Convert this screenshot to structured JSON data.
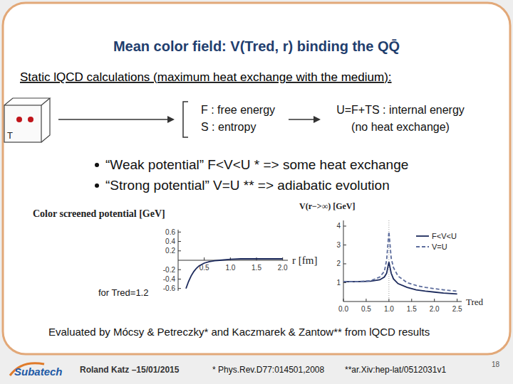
{
  "slide": {
    "title": "Mean color field: V(Tred, r) binding the QQ̄",
    "intro": "Static lQCD calculations (maximum heat exchange with the medium):",
    "box_label": "T",
    "definitions": [
      "F : free energy",
      "S : entropy"
    ],
    "internal_energy": [
      "U=F+TS : internal energy",
      "(no heat exchange)"
    ],
    "bullets": [
      "“Weak potential” F<V<U * => some heat exchange",
      "“Strong potential” V=U ** => adiabatic evolution"
    ],
    "footnote": "Evaluated by Mócsy & Petreczky* and Kaczmarek & Zantow** from lQCD results",
    "footer": {
      "logo": "Subatech",
      "author": "Roland Katz –15/01/2015",
      "ref1": "* Phys.Rev.D77:014501,2008",
      "ref2": "**ar.Xiv:hep-lat/0512031v1",
      "page": 18
    }
  },
  "chart_data": [
    {
      "type": "line",
      "title": "Color screened potential [GeV]",
      "x_label": "r [fm]",
      "annotation": "for Tred=1.2",
      "x": [
        0.15,
        0.2,
        0.25,
        0.3,
        0.35,
        0.4,
        0.5,
        0.6,
        0.7,
        0.8,
        1.0,
        1.2,
        1.5,
        2.0
      ],
      "values": [
        -0.6,
        -0.45,
        -0.33,
        -0.24,
        -0.17,
        -0.12,
        -0.06,
        -0.03,
        -0.01,
        0.0,
        0.02,
        0.03,
        0.03,
        0.03
      ],
      "color": "#1c2a5c",
      "xlim": [
        0,
        2.1
      ],
      "ylim": [
        -0.65,
        0.65
      ],
      "xticks": [
        0.5,
        {
          "value": 1,
          "label": "1.0"
        },
        1.5,
        {
          "value": 2,
          "label": "2.0"
        }
      ],
      "yticks": [
        0.6,
        0.4,
        0.2,
        -0.2,
        -0.4,
        -0.6
      ]
    },
    {
      "type": "line",
      "title": "V(r−>∞) [GeV]",
      "x_label": "Tred",
      "x": [
        0,
        0.2,
        0.4,
        0.6,
        0.8,
        0.9,
        0.95,
        1.0,
        1.05,
        1.1,
        1.2,
        1.4,
        1.6,
        1.8,
        2.0,
        2.2,
        2.5
      ],
      "series": [
        {
          "name": "F<V<U",
          "color": "#1c2a5c",
          "line_style": "solid",
          "values": [
            1.05,
            1.05,
            1.06,
            1.08,
            1.15,
            1.3,
            1.5,
            2.1,
            1.5,
            1.2,
            0.95,
            0.75,
            0.62,
            0.55,
            0.5,
            0.45,
            0.4
          ]
        },
        {
          "name": "V=U",
          "color": "#5c6c9c",
          "line_style": "dashed",
          "values": [
            1.05,
            1.05,
            1.07,
            1.1,
            1.3,
            1.6,
            2.2,
            3.7,
            2.3,
            1.8,
            1.35,
            1.0,
            0.85,
            0.75,
            0.68,
            0.62,
            0.55
          ]
        }
      ],
      "reference_x": 1,
      "xlim": [
        0,
        2.6
      ],
      "ylim": [
        0,
        4.3
      ],
      "xticks": [
        {
          "value": 0,
          "label": "0.0"
        },
        0.5,
        {
          "value": 1,
          "label": "1.0"
        },
        1.5,
        {
          "value": 2,
          "label": "2.0"
        },
        2.5
      ],
      "yticks": [
        1,
        2,
        3,
        4
      ],
      "legend": "upper right"
    }
  ]
}
